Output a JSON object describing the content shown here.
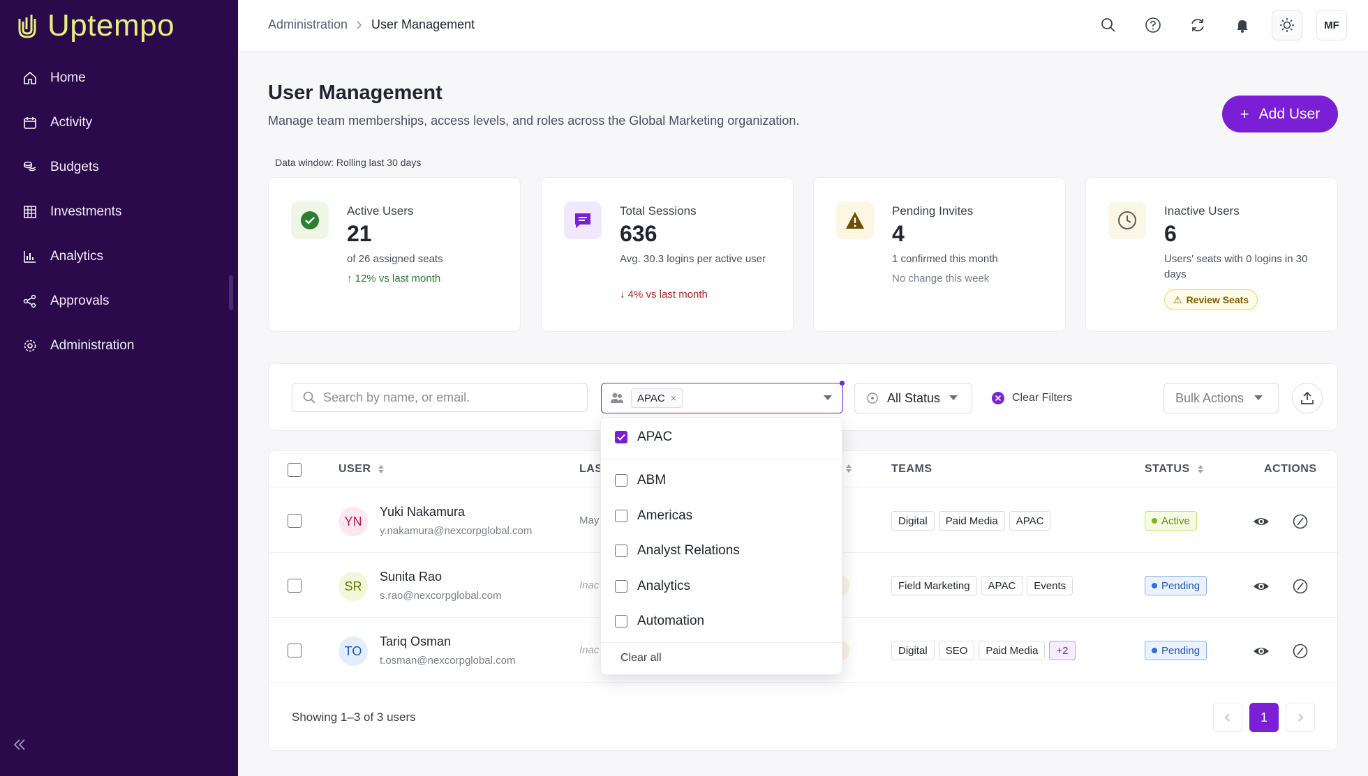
{
  "app": {
    "name": "Uptempo"
  },
  "sidebar": {
    "items": [
      {
        "label": "Home",
        "icon": "home-icon"
      },
      {
        "label": "Activity",
        "icon": "calendar-icon"
      },
      {
        "label": "Budgets",
        "icon": "coins-icon"
      },
      {
        "label": "Investments",
        "icon": "grid-icon"
      },
      {
        "label": "Analytics",
        "icon": "bar-chart-icon"
      },
      {
        "label": "Approvals",
        "icon": "share-nodes-icon"
      },
      {
        "label": "Administration",
        "icon": "gear-icon"
      }
    ]
  },
  "topbar": {
    "breadcrumb": [
      "Administration",
      "User Management"
    ],
    "avatar_initials": "MF"
  },
  "header": {
    "title": "User Management",
    "subtitle": "Manage team memberships, access levels, and roles across the Global Marketing organization.",
    "add_button": "Add User",
    "data_window": "Data window: Rolling last 30 days"
  },
  "cards": [
    {
      "label": "Active Users",
      "value": "21",
      "desc": "of 26 assigned seats",
      "trend": "12% vs last month",
      "trend_dir": "up",
      "icon": "check-circle-icon",
      "color": "#2e7d32"
    },
    {
      "label": "Total Sessions",
      "value": "636",
      "desc": "Avg. 30.3 logins per active user",
      "trend": "4% vs last month",
      "trend_dir": "down",
      "icon": "chat-icon",
      "color": "#7a1fd6"
    },
    {
      "label": "Pending Invites",
      "value": "4",
      "desc": "1 confirmed this month",
      "trend": "No change this week",
      "trend_dir": "flat",
      "icon": "warning-icon",
      "color": "#6b4e00"
    },
    {
      "label": "Inactive Users",
      "value": "6",
      "desc": "Users' seats with 0 logins in 30 days",
      "badge": "Review Seats",
      "icon": "clock-icon",
      "color": "#5a5a5a"
    }
  ],
  "filters": {
    "search_placeholder": "Search by name, or email.",
    "team_chip": "APAC",
    "status_value": "All Status",
    "clear_filters": "Clear Filters",
    "bulk_actions": "Bulk Actions"
  },
  "table": {
    "columns": {
      "user": "USER",
      "last": "LAS",
      "teams": "TEAMS",
      "status": "STATUS",
      "actions": "ACTIONS"
    },
    "rows": [
      {
        "initials": "YN",
        "name": "Yuki Nakamura",
        "email": "y.nakamura@nexcorpglobal.com",
        "last": "May",
        "last_italic": false,
        "ghost": "",
        "teams": [
          "Digital",
          "Paid Media",
          "APAC"
        ],
        "status": "Active",
        "status_kind": "active",
        "av_bg": "#fde8ee",
        "av_fg": "#c2185b"
      },
      {
        "initials": "SR",
        "name": "Sunita Rao",
        "email": "s.rao@nexcorpglobal.com",
        "last": "Inac",
        "last_italic": true,
        "ghost": "it",
        "teams": [
          "Field Marketing",
          "APAC",
          "Events"
        ],
        "status": "Pending",
        "status_kind": "pending",
        "av_bg": "#f2f7dc",
        "av_fg": "#5c7a00"
      },
      {
        "initials": "TO",
        "name": "Tariq Osman",
        "email": "t.osman@nexcorpglobal.com",
        "last": "Inac",
        "last_italic": true,
        "ghost": "it",
        "teams": [
          "Digital",
          "SEO",
          "Paid Media",
          "+2"
        ],
        "status": "Pending",
        "status_kind": "pending",
        "av_bg": "#e2eefc",
        "av_fg": "#2156b8"
      }
    ],
    "showing": "Showing 1–3 of 3 users",
    "current_page": "1"
  },
  "dropdown": {
    "selected": {
      "label": "APAC",
      "checked": true
    },
    "options": [
      {
        "label": "ABM",
        "checked": false
      },
      {
        "label": "Americas",
        "checked": false
      },
      {
        "label": "Analyst Relations",
        "checked": false
      },
      {
        "label": "Analytics",
        "checked": false
      },
      {
        "label": "Automation",
        "checked": false
      }
    ],
    "clear_all": "Clear all"
  },
  "colors": {
    "sidebar_bg": "#2a0a4a",
    "accent": "#7a1fd6",
    "logo": "#e6f07a"
  }
}
